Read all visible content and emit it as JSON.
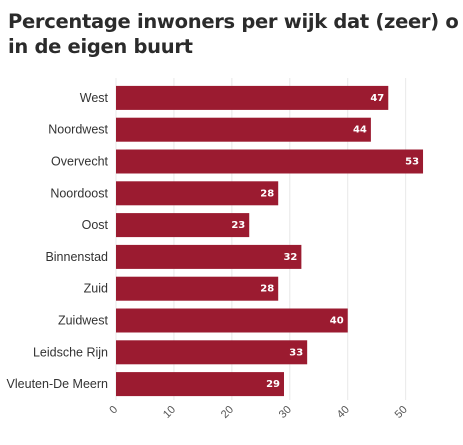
{
  "chart_data": {
    "type": "bar",
    "orientation": "horizontal",
    "title_lines": [
      "Percentage inwoners per wijk dat (zeer) ontevrede",
      "in de eigen buurt"
    ],
    "categories": [
      "West",
      "Noordwest",
      "Overvecht",
      "Noordoost",
      "Oost",
      "Binnenstad",
      "Zuid",
      "Zuidwest",
      "Leidsche Rijn",
      "Vleuten-De Meern"
    ],
    "values": [
      47,
      44,
      53,
      28,
      23,
      32,
      28,
      40,
      33,
      29
    ],
    "xlim": [
      0,
      58
    ],
    "xticks": [
      0,
      10,
      20,
      30,
      40,
      50
    ],
    "grid": true,
    "bar_color": "#9b1b30",
    "grid_color": "#e8e8e8"
  }
}
